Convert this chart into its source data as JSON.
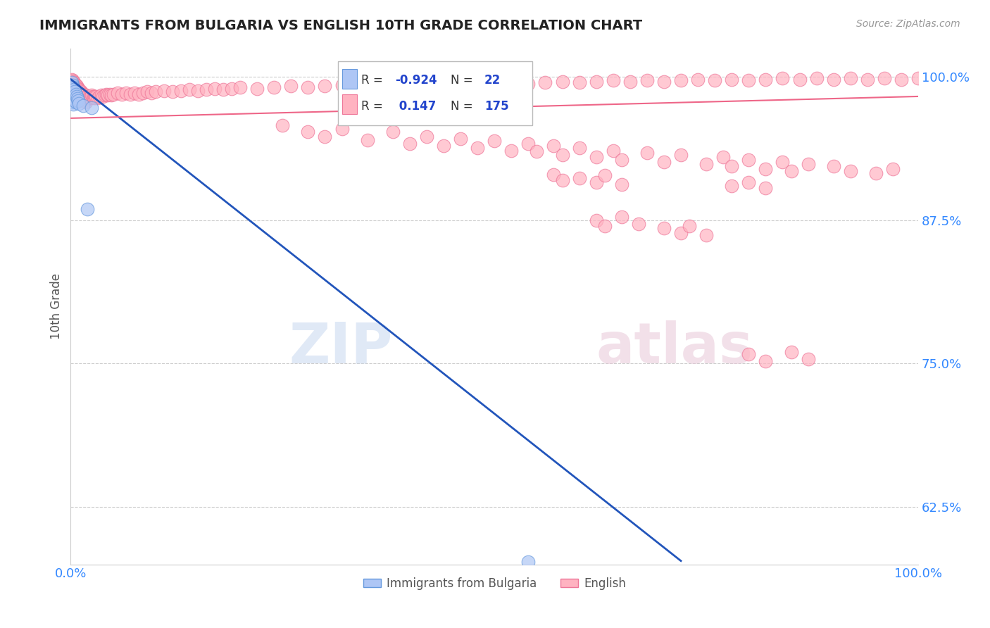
{
  "title": "IMMIGRANTS FROM BULGARIA VS ENGLISH 10TH GRADE CORRELATION CHART",
  "source": "Source: ZipAtlas.com",
  "ylabel": "10th Grade",
  "xlim": [
    0.0,
    1.0
  ],
  "ylim": [
    0.575,
    1.025
  ],
  "yticks": [
    0.625,
    0.75,
    0.875,
    1.0
  ],
  "ytick_labels": [
    "62.5%",
    "75.0%",
    "87.5%",
    "100.0%"
  ],
  "xtick_labels": [
    "0.0%",
    "100.0%"
  ],
  "blue_color": "#aec6f5",
  "blue_edge_color": "#6699dd",
  "pink_color": "#ffb3c1",
  "pink_edge_color": "#ee7799",
  "blue_line_color": "#2255bb",
  "pink_line_color": "#ee6688",
  "watermark_zip": "ZIP",
  "watermark_atlas": "atlas",
  "background_color": "#ffffff",
  "title_color": "#222222",
  "axis_label_color": "#555555",
  "tick_color": "#3388ff",
  "grid_color": "#cccccc",
  "legend_box_color": "#eeeeee",
  "r1_val": "-0.924",
  "n1_val": "22",
  "r2_val": "0.147",
  "n2_val": "175",
  "blue_scatter": [
    [
      0.001,
      0.995
    ],
    [
      0.001,
      0.988
    ],
    [
      0.002,
      0.993
    ],
    [
      0.002,
      0.985
    ],
    [
      0.002,
      0.978
    ],
    [
      0.003,
      0.991
    ],
    [
      0.003,
      0.983
    ],
    [
      0.003,
      0.976
    ],
    [
      0.004,
      0.989
    ],
    [
      0.004,
      0.981
    ],
    [
      0.005,
      0.987
    ],
    [
      0.005,
      0.979
    ],
    [
      0.006,
      0.985
    ],
    [
      0.006,
      0.978
    ],
    [
      0.007,
      0.983
    ],
    [
      0.008,
      0.981
    ],
    [
      0.009,
      0.979
    ],
    [
      0.01,
      0.977
    ],
    [
      0.015,
      0.975
    ],
    [
      0.02,
      0.885
    ],
    [
      0.025,
      0.973
    ],
    [
      0.54,
      0.577
    ]
  ],
  "pink_scatter_top": [
    [
      0.001,
      0.998
    ],
    [
      0.001,
      0.993
    ],
    [
      0.001,
      0.988
    ],
    [
      0.002,
      0.997
    ],
    [
      0.002,
      0.992
    ],
    [
      0.002,
      0.987
    ],
    [
      0.003,
      0.996
    ],
    [
      0.003,
      0.991
    ],
    [
      0.003,
      0.986
    ],
    [
      0.004,
      0.995
    ],
    [
      0.004,
      0.99
    ],
    [
      0.004,
      0.985
    ],
    [
      0.005,
      0.994
    ],
    [
      0.005,
      0.989
    ],
    [
      0.005,
      0.984
    ],
    [
      0.006,
      0.993
    ],
    [
      0.006,
      0.988
    ],
    [
      0.006,
      0.983
    ],
    [
      0.007,
      0.992
    ],
    [
      0.007,
      0.987
    ],
    [
      0.008,
      0.991
    ],
    [
      0.008,
      0.986
    ],
    [
      0.009,
      0.99
    ],
    [
      0.009,
      0.985
    ],
    [
      0.01,
      0.989
    ],
    [
      0.01,
      0.984
    ],
    [
      0.011,
      0.988
    ],
    [
      0.011,
      0.983
    ],
    [
      0.012,
      0.987
    ],
    [
      0.012,
      0.982
    ],
    [
      0.013,
      0.986
    ],
    [
      0.013,
      0.981
    ],
    [
      0.014,
      0.985
    ],
    [
      0.014,
      0.98
    ],
    [
      0.015,
      0.984
    ],
    [
      0.015,
      0.979
    ],
    [
      0.016,
      0.985
    ],
    [
      0.016,
      0.98
    ],
    [
      0.017,
      0.984
    ],
    [
      0.017,
      0.979
    ],
    [
      0.018,
      0.983
    ],
    [
      0.018,
      0.978
    ],
    [
      0.019,
      0.982
    ],
    [
      0.02,
      0.983
    ],
    [
      0.021,
      0.982
    ],
    [
      0.022,
      0.983
    ],
    [
      0.023,
      0.982
    ],
    [
      0.024,
      0.983
    ],
    [
      0.025,
      0.984
    ],
    [
      0.026,
      0.983
    ],
    [
      0.027,
      0.982
    ],
    [
      0.028,
      0.983
    ],
    [
      0.029,
      0.982
    ],
    [
      0.03,
      0.983
    ],
    [
      0.032,
      0.982
    ],
    [
      0.034,
      0.983
    ],
    [
      0.036,
      0.984
    ],
    [
      0.038,
      0.983
    ],
    [
      0.04,
      0.984
    ],
    [
      0.042,
      0.985
    ],
    [
      0.044,
      0.984
    ],
    [
      0.046,
      0.985
    ],
    [
      0.048,
      0.984
    ],
    [
      0.05,
      0.985
    ],
    [
      0.055,
      0.986
    ],
    [
      0.06,
      0.985
    ],
    [
      0.065,
      0.986
    ],
    [
      0.07,
      0.985
    ],
    [
      0.075,
      0.986
    ],
    [
      0.08,
      0.985
    ],
    [
      0.085,
      0.986
    ],
    [
      0.09,
      0.987
    ],
    [
      0.095,
      0.986
    ],
    [
      0.1,
      0.987
    ],
    [
      0.11,
      0.988
    ],
    [
      0.12,
      0.987
    ],
    [
      0.13,
      0.988
    ],
    [
      0.14,
      0.989
    ],
    [
      0.15,
      0.988
    ],
    [
      0.16,
      0.989
    ],
    [
      0.17,
      0.99
    ],
    [
      0.18,
      0.989
    ],
    [
      0.19,
      0.99
    ],
    [
      0.2,
      0.991
    ],
    [
      0.22,
      0.99
    ],
    [
      0.24,
      0.991
    ],
    [
      0.26,
      0.992
    ],
    [
      0.28,
      0.991
    ],
    [
      0.3,
      0.992
    ],
    [
      0.32,
      0.993
    ],
    [
      0.34,
      0.992
    ],
    [
      0.36,
      0.993
    ],
    [
      0.38,
      0.994
    ],
    [
      0.4,
      0.993
    ],
    [
      0.42,
      0.994
    ],
    [
      0.44,
      0.995
    ],
    [
      0.46,
      0.994
    ],
    [
      0.48,
      0.995
    ],
    [
      0.5,
      0.994
    ],
    [
      0.52,
      0.995
    ],
    [
      0.54,
      0.994
    ],
    [
      0.56,
      0.995
    ],
    [
      0.58,
      0.996
    ],
    [
      0.6,
      0.995
    ],
    [
      0.62,
      0.996
    ],
    [
      0.64,
      0.997
    ],
    [
      0.66,
      0.996
    ],
    [
      0.68,
      0.997
    ],
    [
      0.7,
      0.996
    ],
    [
      0.72,
      0.997
    ],
    [
      0.74,
      0.998
    ],
    [
      0.76,
      0.997
    ],
    [
      0.78,
      0.998
    ],
    [
      0.8,
      0.997
    ],
    [
      0.82,
      0.998
    ],
    [
      0.84,
      0.999
    ],
    [
      0.86,
      0.998
    ],
    [
      0.88,
      0.999
    ],
    [
      0.9,
      0.998
    ],
    [
      0.92,
      0.999
    ],
    [
      0.94,
      0.998
    ],
    [
      0.96,
      0.999
    ],
    [
      0.98,
      0.998
    ],
    [
      1.0,
      0.999
    ]
  ],
  "pink_scatter_mid": [
    [
      0.25,
      0.958
    ],
    [
      0.28,
      0.952
    ],
    [
      0.3,
      0.948
    ],
    [
      0.32,
      0.955
    ],
    [
      0.35,
      0.945
    ],
    [
      0.38,
      0.952
    ],
    [
      0.4,
      0.942
    ],
    [
      0.42,
      0.948
    ],
    [
      0.44,
      0.94
    ],
    [
      0.46,
      0.946
    ],
    [
      0.48,
      0.938
    ],
    [
      0.5,
      0.944
    ],
    [
      0.52,
      0.936
    ],
    [
      0.54,
      0.942
    ],
    [
      0.55,
      0.935
    ],
    [
      0.57,
      0.94
    ],
    [
      0.58,
      0.932
    ],
    [
      0.6,
      0.938
    ],
    [
      0.62,
      0.93
    ],
    [
      0.64,
      0.936
    ],
    [
      0.65,
      0.928
    ],
    [
      0.68,
      0.934
    ],
    [
      0.7,
      0.926
    ],
    [
      0.72,
      0.932
    ],
    [
      0.75,
      0.924
    ],
    [
      0.77,
      0.93
    ],
    [
      0.78,
      0.922
    ],
    [
      0.8,
      0.928
    ],
    [
      0.82,
      0.92
    ],
    [
      0.84,
      0.926
    ],
    [
      0.85,
      0.918
    ],
    [
      0.87,
      0.924
    ],
    [
      0.9,
      0.922
    ],
    [
      0.92,
      0.918
    ],
    [
      0.95,
      0.916
    ],
    [
      0.97,
      0.92
    ],
    [
      0.57,
      0.915
    ],
    [
      0.58,
      0.91
    ],
    [
      0.6,
      0.912
    ],
    [
      0.62,
      0.908
    ],
    [
      0.63,
      0.914
    ],
    [
      0.65,
      0.906
    ],
    [
      0.78,
      0.905
    ],
    [
      0.8,
      0.908
    ],
    [
      0.82,
      0.903
    ]
  ],
  "pink_scatter_low": [
    [
      0.62,
      0.875
    ],
    [
      0.63,
      0.87
    ],
    [
      0.65,
      0.878
    ],
    [
      0.67,
      0.872
    ],
    [
      0.7,
      0.868
    ],
    [
      0.72,
      0.864
    ],
    [
      0.73,
      0.87
    ],
    [
      0.75,
      0.862
    ],
    [
      0.8,
      0.758
    ],
    [
      0.82,
      0.752
    ],
    [
      0.85,
      0.76
    ],
    [
      0.87,
      0.754
    ]
  ],
  "blue_line_x": [
    0.0,
    0.72
  ],
  "blue_line_y": [
    0.998,
    0.578
  ],
  "pink_line_x": [
    0.0,
    1.0
  ],
  "pink_line_y": [
    0.964,
    0.983
  ]
}
